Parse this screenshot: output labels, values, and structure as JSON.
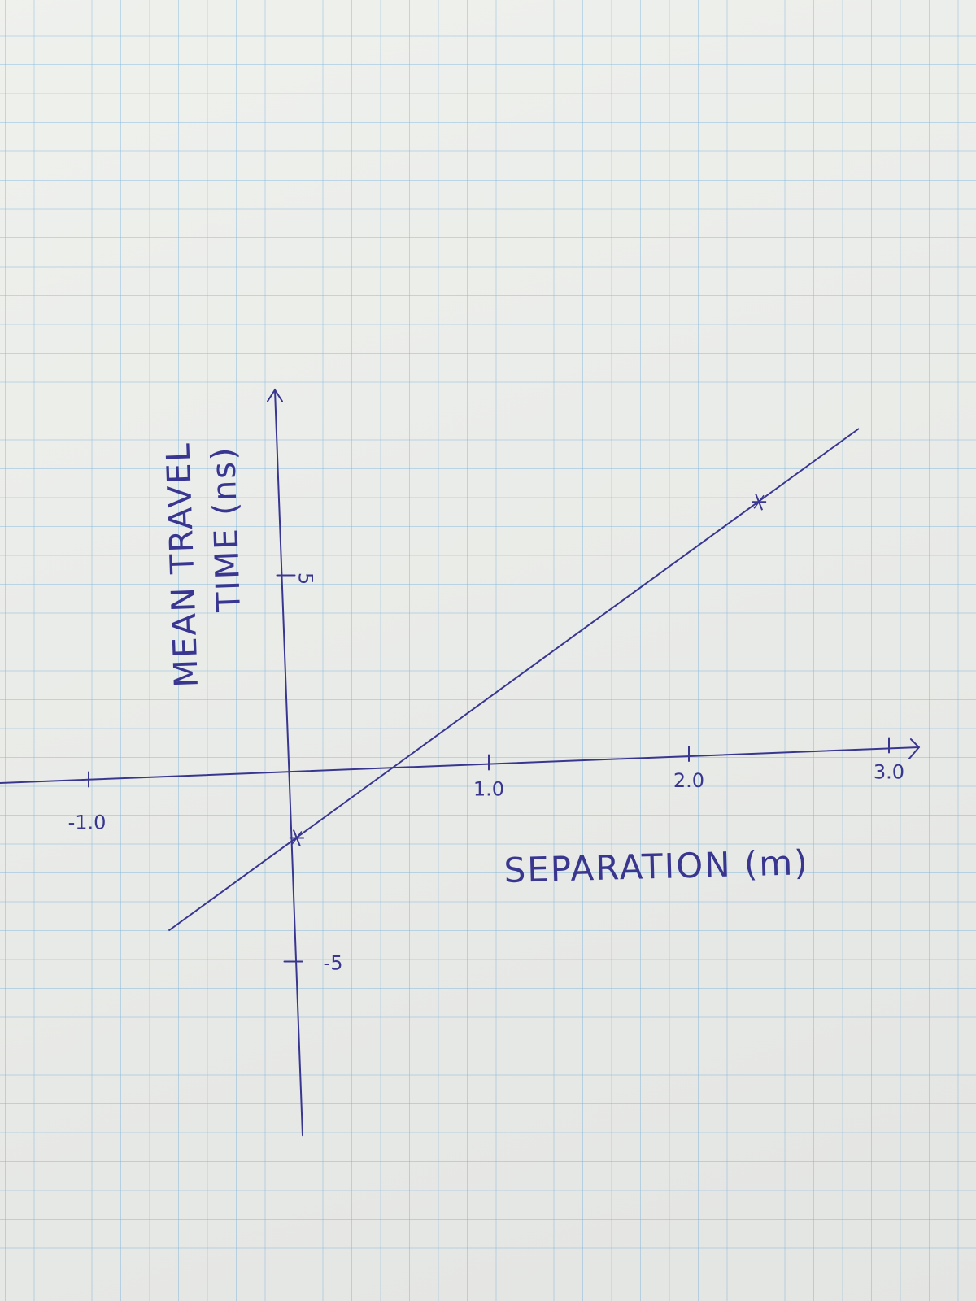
{
  "chart_data": {
    "type": "line",
    "title": "",
    "xlabel": "SEPARATION (m)",
    "ylabel_line1": "MEAN TRAVEL",
    "ylabel_line2": "TIME (ns)",
    "x_ticks": [
      {
        "value": -1.0,
        "label": "-1.0"
      },
      {
        "value": 1.0,
        "label": "1.0"
      },
      {
        "value": 2.0,
        "label": "2.0"
      },
      {
        "value": 3.0,
        "label": "3.0"
      }
    ],
    "y_ticks": [
      {
        "value": 5,
        "label": "5"
      },
      {
        "value": -5,
        "label": "-5"
      }
    ],
    "xlim": [
      -1.4,
      3.15
    ],
    "ylim": [
      -9.5,
      9.8
    ],
    "points": [
      {
        "x": 0.04,
        "y": -1.8
      },
      {
        "x": 2.35,
        "y": 6.9
      }
    ],
    "fit_line": {
      "x": [
        -0.6,
        2.85
      ],
      "y": [
        -4.2,
        8.8
      ]
    },
    "marker": "*",
    "ink_color": "#2d2a8c",
    "grid": true
  }
}
